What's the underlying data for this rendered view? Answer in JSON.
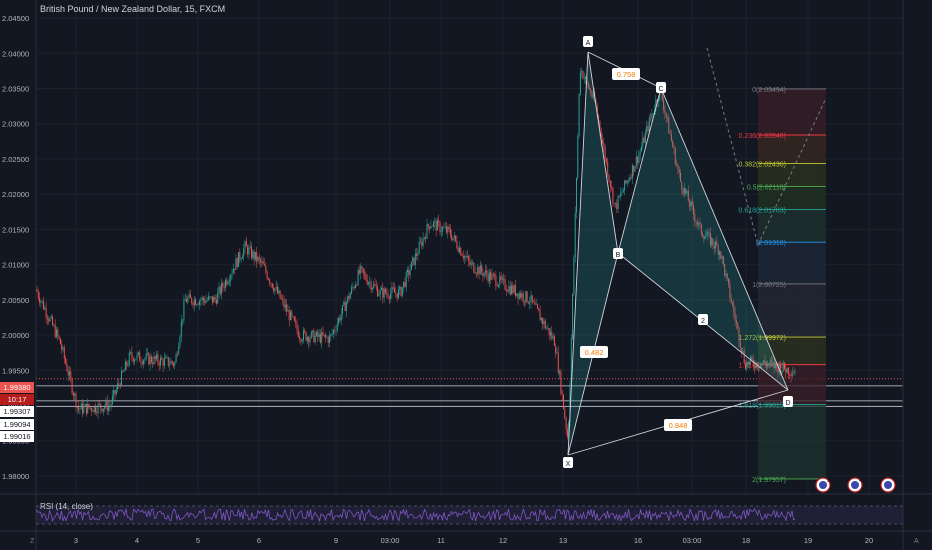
{
  "title": "British Pound / New Zealand Dollar, 15, FXCM",
  "price_axis": {
    "ticks": [
      "2.04500",
      "2.04000",
      "2.03500",
      "2.03000",
      "2.02500",
      "2.02000",
      "2.01500",
      "2.01000",
      "2.00500",
      "2.00000",
      "1.99500",
      "1.99000",
      "1.98500",
      "1.98000"
    ],
    "values": [
      2.045,
      2.04,
      2.035,
      2.03,
      2.025,
      2.02,
      2.015,
      2.01,
      2.005,
      2.0,
      1.995,
      1.99,
      1.985,
      1.98
    ],
    "range": [
      1.978,
      2.047
    ]
  },
  "tags": {
    "current_price": "1.99380",
    "countdown": "10:17",
    "levels": [
      "1.99307",
      "1.99094",
      "1.99016"
    ]
  },
  "time_axis": {
    "labels": [
      "3",
      "4",
      "5",
      "6",
      "9",
      "03:00",
      "11",
      "12",
      "13",
      "16",
      "03:00",
      "18",
      "19",
      "20"
    ]
  },
  "pattern": {
    "points": {
      "X": "X",
      "A": "A",
      "B": "B",
      "C": "C",
      "D": "D",
      "Z": "2"
    },
    "ratios": {
      "xb": "0.482",
      "ac": "0.758",
      "xd": "0.848"
    }
  },
  "fib_levels": [
    {
      "label": "0(2.03494)",
      "value": 2.03494,
      "color": "#787b86"
    },
    {
      "label": "0.236(2.02840)",
      "value": 2.0284,
      "color": "#f23645"
    },
    {
      "label": "0.382(2.02436)",
      "value": 2.02436,
      "color": "#c0ca33"
    },
    {
      "label": "0.5(2.02110)",
      "value": 2.0211,
      "color": "#4caf50"
    },
    {
      "label": "0.618(2.01783)",
      "value": 2.01783,
      "color": "#26a69a"
    },
    {
      "label": "(2.01318)",
      "value": 2.01318,
      "color": "#2196f3"
    },
    {
      "label": "1(2.00725)",
      "value": 2.00725,
      "color": "#787b86"
    },
    {
      "label": "1.272(1.99972)",
      "value": 1.99972,
      "color": "#c0ca33"
    },
    {
      "label": "1.414(1.99580)",
      "value": 1.9958,
      "color": "#f23645"
    },
    {
      "label": "1.618(1.99015)",
      "value": 1.99015,
      "color": "#26a69a"
    },
    {
      "label": "2(1.97957)",
      "value": 1.97957,
      "color": "#4caf50"
    }
  ],
  "rsi": {
    "label": "RSI (14, close)"
  },
  "colors": {
    "up": "#26a69a",
    "down": "#ef5350",
    "pattern": "#26a69a",
    "rsi": "#7e57c2"
  },
  "events": {
    "badge_count": "3",
    "badge_pair": "4 6"
  },
  "corner": {
    "left": "Z",
    "right": "A"
  }
}
